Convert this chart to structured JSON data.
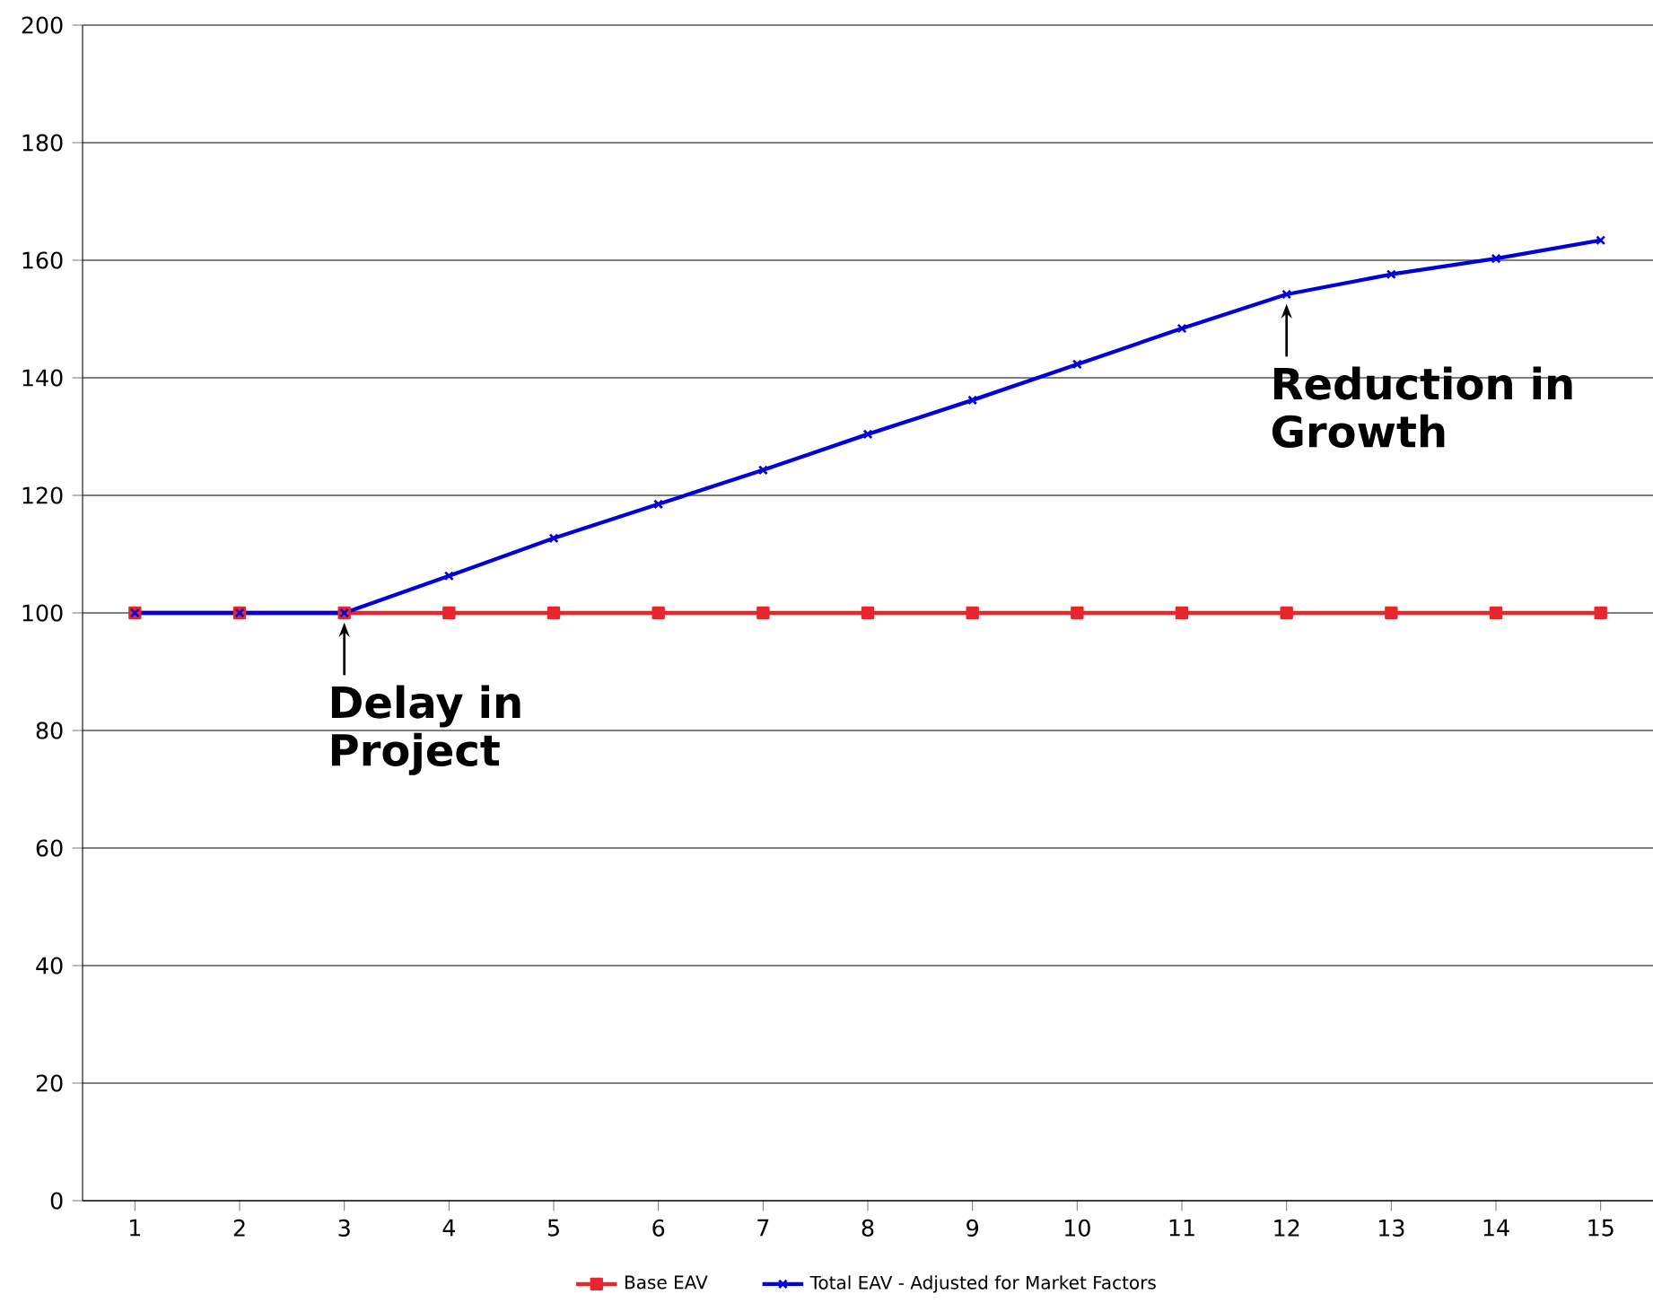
{
  "chart_data": {
    "type": "line",
    "categories": [
      "1",
      "2",
      "3",
      "4",
      "5",
      "6",
      "7",
      "8",
      "9",
      "10",
      "11",
      "12",
      "13",
      "14",
      "15"
    ],
    "series": [
      {
        "name": "Base EAV",
        "color": "#e8262b",
        "marker": "square",
        "values": [
          100,
          100,
          100,
          100,
          100,
          100,
          100,
          100,
          100,
          100,
          100,
          100,
          100,
          100,
          100
        ]
      },
      {
        "name": "Total EAV - Adjusted for Market Factors",
        "color": "#0000dd",
        "marker": "cross",
        "values": [
          100,
          100,
          100,
          106.3,
          112.7,
          118.5,
          124.3,
          130.4,
          136.2,
          142.3,
          148.4,
          154.2,
          157.6,
          160.3,
          163.4
        ]
      }
    ],
    "ylim": [
      0,
      200
    ],
    "yticks": [
      0,
      20,
      40,
      60,
      80,
      100,
      120,
      140,
      160,
      180,
      200
    ],
    "grid": "y",
    "legend": "bottom",
    "line_style": "solid",
    "annotations": [
      {
        "text": "Delay in Project",
        "x": "3",
        "y": 100
      },
      {
        "text": "Reduction in Growth",
        "x": "12",
        "y": 154.2
      }
    ]
  }
}
